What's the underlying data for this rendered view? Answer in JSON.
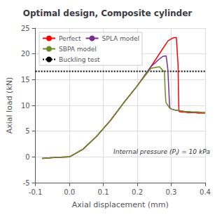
{
  "chart_data": {
    "type": "line",
    "title": "Optimal design, Composite cylinder",
    "xlabel": "Axial displacement (mm)",
    "ylabel": "Axial load (kN)",
    "xlim": [
      -0.1,
      0.4
    ],
    "ylim": [
      -5,
      25
    ],
    "xticks": [
      -0.1,
      {
        "value": 0.0,
        "label": "0.0"
      },
      0.1,
      0.2,
      0.3,
      0.4
    ],
    "yticks": [
      -5,
      0,
      5,
      10,
      15,
      20,
      25
    ],
    "grid": true,
    "legend": "upper left",
    "annotations": [
      {
        "text": "Internal pressure (P",
        "subscript": "i",
        "text_after": ") = 10 kPa",
        "x": 0.13,
        "y": 1.0
      }
    ],
    "series": [
      {
        "name": "Perfect",
        "color": "#ff0000",
        "x": [
          -0.08,
          -0.04,
          0.0,
          0.04,
          0.08,
          0.12,
          0.16,
          0.2,
          0.24,
          0.27,
          0.29,
          0.305,
          0.315,
          0.32,
          0.322,
          0.323,
          0.33,
          0.34,
          0.35,
          0.36,
          0.37,
          0.38,
          0.39,
          0.4
        ],
        "values": [
          -0.3,
          -0.1,
          0.0,
          1.5,
          4.0,
          7.0,
          10.5,
          13.8,
          17.5,
          20.5,
          22.5,
          23.1,
          23.2,
          18.0,
          10.0,
          8.8,
          8.7,
          8.7,
          8.6,
          8.6,
          8.6,
          8.5,
          8.5,
          8.5
        ]
      },
      {
        "name": "SPLA model",
        "color": "#7b2d8b",
        "x": [
          -0.08,
          -0.04,
          0.0,
          0.04,
          0.08,
          0.12,
          0.16,
          0.2,
          0.24,
          0.265,
          0.275,
          0.285,
          0.29,
          0.295,
          0.296,
          0.3,
          0.31,
          0.32,
          0.33,
          0.34,
          0.35,
          0.36,
          0.37,
          0.38,
          0.39,
          0.4
        ],
        "values": [
          -0.3,
          -0.1,
          0.0,
          1.5,
          4.0,
          7.0,
          10.5,
          13.8,
          17.5,
          19.0,
          19.5,
          19.6,
          17.0,
          10.0,
          9.5,
          9.3,
          9.1,
          9.0,
          8.9,
          8.8,
          8.8,
          8.7,
          8.7,
          8.7,
          8.6,
          8.6
        ]
      },
      {
        "name": "SBPA model",
        "color": "#6b8e23",
        "x": [
          -0.08,
          -0.04,
          0.0,
          0.04,
          0.08,
          0.12,
          0.16,
          0.2,
          0.24,
          0.265,
          0.275,
          0.28,
          0.282,
          0.284,
          0.285,
          0.29,
          0.295,
          0.3,
          0.31,
          0.32,
          0.33,
          0.34,
          0.35,
          0.36,
          0.37,
          0.38,
          0.39,
          0.4
        ],
        "values": [
          -0.3,
          -0.1,
          0.0,
          1.5,
          4.0,
          7.0,
          10.5,
          13.8,
          17.2,
          17.5,
          16.8,
          16.5,
          13.0,
          10.8,
          10.5,
          10.0,
          9.5,
          9.3,
          9.1,
          9.0,
          8.9,
          8.8,
          8.8,
          8.7,
          8.7,
          8.7,
          8.6,
          8.6
        ]
      },
      {
        "name": "Buckling test",
        "type": "hline",
        "color": "#000000",
        "line_style": "dotted",
        "values": [
          16.6
        ]
      }
    ]
  }
}
